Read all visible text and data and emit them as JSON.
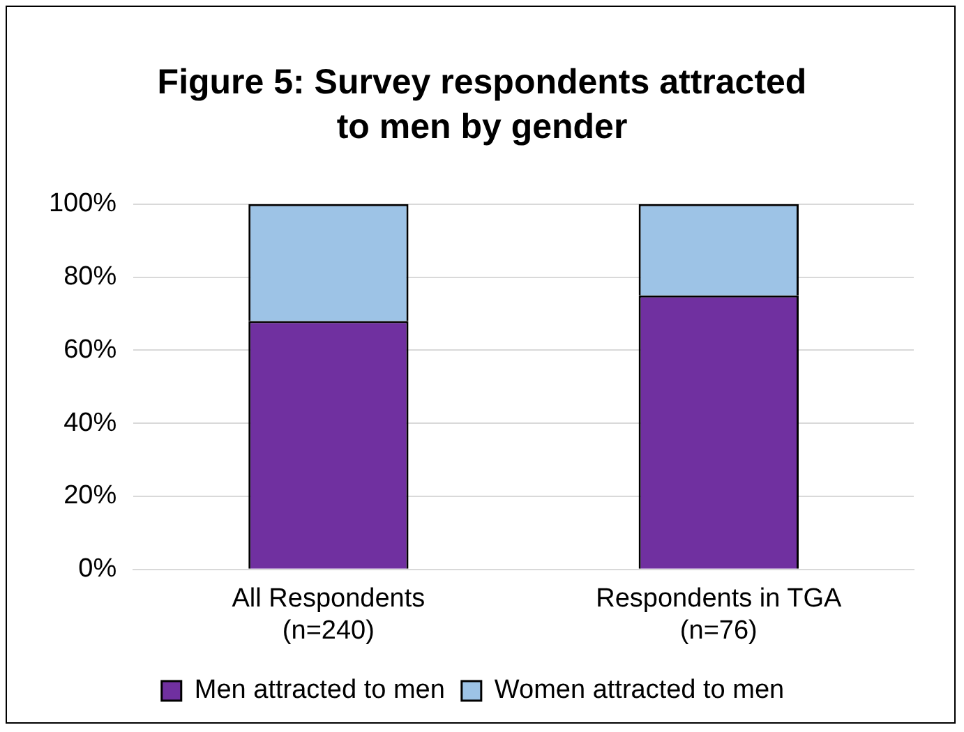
{
  "chart_data": {
    "type": "bar",
    "title": "Figure 5: Survey respondents attracted to men by gender",
    "categories": [
      "All Respondents\n(n=240)",
      "Respondents in TGA\n(n=76)"
    ],
    "stacked": true,
    "series": [
      {
        "name": "Men attracted to men",
        "color": "#7030a0",
        "values": [
          68,
          75
        ]
      },
      {
        "name": "Women attracted to men",
        "color": "#9dc3e6",
        "values": [
          32,
          25
        ]
      }
    ],
    "ylim": [
      0,
      100
    ],
    "yticks": [
      {
        "value": 0,
        "label": "0%"
      },
      {
        "value": 20,
        "label": "20%"
      },
      {
        "value": 40,
        "label": "40%"
      },
      {
        "value": 60,
        "label": "60%"
      },
      {
        "value": 80,
        "label": "80%"
      },
      {
        "value": 100,
        "label": "100%"
      }
    ],
    "grid": "y",
    "legend": "bottom"
  }
}
